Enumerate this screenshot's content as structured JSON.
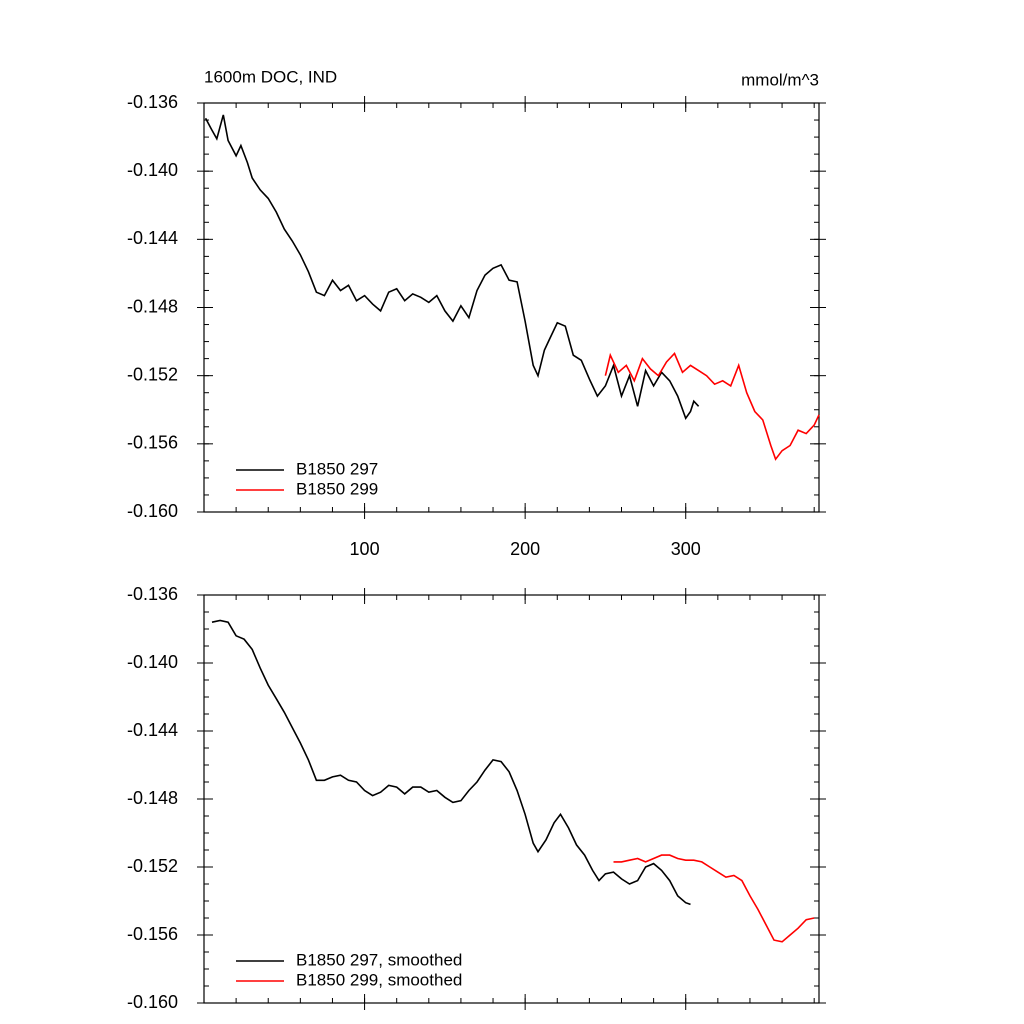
{
  "chart_data": [
    {
      "type": "line",
      "title": "1600m DOC, IND",
      "units": "mmol/m^3",
      "xlim": [
        0,
        383
      ],
      "xticks": [
        100,
        200,
        300
      ],
      "show_xtick_labels": true,
      "ylim": [
        -0.136,
        -0.16
      ],
      "yticks": [
        -0.136,
        {
          "value": -0.14,
          "label": "-0.140"
        },
        -0.144,
        -0.148,
        -0.152,
        -0.156,
        {
          "value": -0.16,
          "label": "-0.160"
        }
      ],
      "legend": "lower left",
      "series": [
        {
          "name": "B1850 297",
          "color": "#000000",
          "x": [
            1,
            5,
            8,
            12,
            15,
            20,
            23,
            27,
            30,
            35,
            40,
            45,
            50,
            55,
            60,
            65,
            70,
            75,
            80,
            85,
            90,
            95,
            100,
            105,
            110,
            115,
            120,
            125,
            130,
            135,
            140,
            145,
            150,
            155,
            160,
            165,
            170,
            175,
            180,
            185,
            190,
            195,
            200,
            205,
            208,
            212,
            215,
            220,
            225,
            230,
            235,
            240,
            245,
            250,
            255,
            260,
            265,
            270,
            275,
            280,
            285,
            290,
            295,
            300,
            303,
            305,
            308
          ],
          "values": [
            -0.1369,
            -0.1376,
            -0.1381,
            -0.1367,
            -0.1382,
            -0.1391,
            -0.1385,
            -0.1395,
            -0.1404,
            -0.1411,
            -0.1416,
            -0.1424,
            -0.1434,
            -0.1441,
            -0.1449,
            -0.1459,
            -0.1471,
            -0.1473,
            -0.1464,
            -0.147,
            -0.1467,
            -0.1476,
            -0.1473,
            -0.1478,
            -0.1482,
            -0.1471,
            -0.1469,
            -0.1476,
            -0.1472,
            -0.1474,
            -0.1477,
            -0.1473,
            -0.1482,
            -0.1488,
            -0.1479,
            -0.1486,
            -0.147,
            -0.1461,
            -0.1457,
            -0.1455,
            -0.1464,
            -0.1465,
            -0.1488,
            -0.1514,
            -0.152,
            -0.1505,
            -0.1499,
            -0.1489,
            -0.1491,
            -0.1508,
            -0.1511,
            -0.1522,
            -0.1532,
            -0.1526,
            -0.1514,
            -0.1532,
            -0.152,
            -0.1538,
            -0.1517,
            -0.1526,
            -0.1518,
            -0.1523,
            -0.1532,
            -0.1545,
            -0.1541,
            -0.1535,
            -0.1538
          ]
        },
        {
          "name": "B1850 299",
          "color": "#ff0000",
          "x": [
            250,
            253,
            258,
            263,
            268,
            273,
            278,
            283,
            288,
            293,
            298,
            303,
            308,
            313,
            318,
            323,
            328,
            333,
            338,
            343,
            348,
            353,
            356,
            360,
            365,
            370,
            375,
            380,
            383
          ],
          "values": [
            -0.152,
            -0.1508,
            -0.1518,
            -0.1514,
            -0.1523,
            -0.151,
            -0.1516,
            -0.152,
            -0.1512,
            -0.1507,
            -0.1518,
            -0.1514,
            -0.1517,
            -0.152,
            -0.1525,
            -0.1523,
            -0.1526,
            -0.1514,
            -0.153,
            -0.1541,
            -0.1546,
            -0.1561,
            -0.1569,
            -0.1564,
            -0.1561,
            -0.1552,
            -0.1554,
            -0.1549,
            -0.1543
          ]
        }
      ]
    },
    {
      "type": "line",
      "xlim": [
        0,
        383
      ],
      "xticks": [
        100,
        200,
        300
      ],
      "show_xtick_labels": false,
      "ylim": [
        -0.136,
        -0.16
      ],
      "yticks": [
        -0.136,
        {
          "value": -0.14,
          "label": "-0.140"
        },
        -0.144,
        -0.148,
        -0.152,
        -0.156,
        {
          "value": -0.16,
          "label": "-0.160"
        }
      ],
      "legend": "lower left",
      "series": [
        {
          "name": "B1850 297, smoothed",
          "color": "#000000",
          "x": [
            5,
            10,
            15,
            20,
            25,
            30,
            35,
            40,
            45,
            50,
            55,
            60,
            65,
            70,
            75,
            80,
            85,
            90,
            95,
            100,
            105,
            110,
            115,
            120,
            125,
            130,
            135,
            140,
            145,
            150,
            155,
            160,
            165,
            170,
            175,
            180,
            185,
            190,
            195,
            200,
            205,
            208,
            213,
            218,
            222,
            227,
            232,
            237,
            242,
            246,
            250,
            255,
            260,
            265,
            270,
            275,
            280,
            285,
            290,
            295,
            300,
            303
          ],
          "values": [
            -0.1376,
            -0.1375,
            -0.1376,
            -0.1384,
            -0.1386,
            -0.1392,
            -0.1403,
            -0.1413,
            -0.1421,
            -0.1429,
            -0.1438,
            -0.1447,
            -0.1457,
            -0.1469,
            -0.1469,
            -0.1467,
            -0.1466,
            -0.1469,
            -0.147,
            -0.1475,
            -0.1478,
            -0.1476,
            -0.1472,
            -0.1473,
            -0.1477,
            -0.1473,
            -0.1473,
            -0.1476,
            -0.1475,
            -0.1479,
            -0.1482,
            -0.1481,
            -0.1475,
            -0.147,
            -0.1463,
            -0.1457,
            -0.1458,
            -0.1464,
            -0.1475,
            -0.1489,
            -0.1506,
            -0.1511,
            -0.1504,
            -0.1494,
            -0.1489,
            -0.1497,
            -0.1507,
            -0.1513,
            -0.1522,
            -0.1528,
            -0.1524,
            -0.1523,
            -0.1527,
            -0.153,
            -0.1528,
            -0.152,
            -0.1518,
            -0.1522,
            -0.1528,
            -0.1537,
            -0.1541,
            -0.1542
          ]
        },
        {
          "name": "B1850 299, smoothed",
          "color": "#ff0000",
          "x": [
            255,
            260,
            265,
            270,
            275,
            280,
            285,
            290,
            295,
            300,
            305,
            310,
            315,
            320,
            325,
            330,
            335,
            340,
            345,
            350,
            355,
            360,
            365,
            370,
            375,
            380
          ],
          "values": [
            -0.1517,
            -0.1517,
            -0.1516,
            -0.1515,
            -0.1517,
            -0.1515,
            -0.1513,
            -0.1513,
            -0.1515,
            -0.1516,
            -0.1516,
            -0.1517,
            -0.152,
            -0.1523,
            -0.1526,
            -0.1525,
            -0.1528,
            -0.1537,
            -0.1545,
            -0.1554,
            -0.1563,
            -0.1564,
            -0.156,
            -0.1556,
            -0.1551,
            -0.155
          ]
        }
      ]
    }
  ]
}
